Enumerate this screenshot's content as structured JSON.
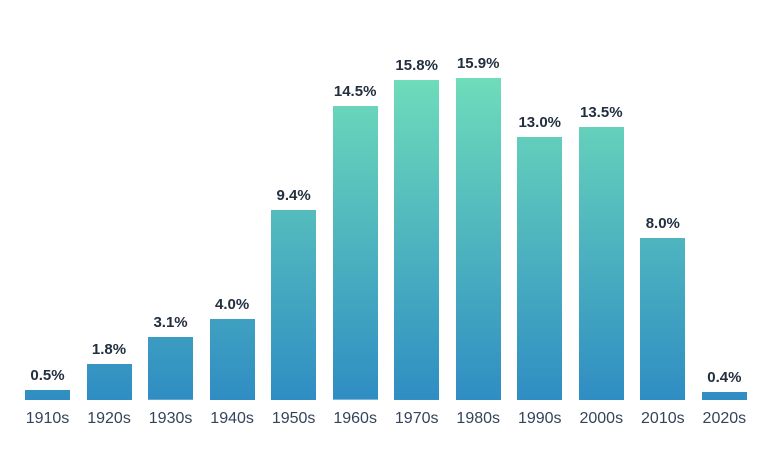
{
  "chart_data": {
    "type": "bar",
    "title": "",
    "xlabel": "",
    "ylabel": "",
    "categories": [
      "1910s",
      "1920s",
      "1930s",
      "1940s",
      "1950s",
      "1960s",
      "1970s",
      "1980s",
      "1990s",
      "2000s",
      "2010s",
      "2020s"
    ],
    "values": [
      0.5,
      1.8,
      3.1,
      4.0,
      9.4,
      14.5,
      15.8,
      15.9,
      13.0,
      13.5,
      8.0,
      0.4
    ],
    "labels": [
      "0.5%",
      "1.8%",
      "3.1%",
      "4.0%",
      "9.4%",
      "14.5%",
      "15.8%",
      "15.9%",
      "13.0%",
      "13.5%",
      "8.0%",
      "0.4%"
    ],
    "ylim": [
      0,
      15.9
    ],
    "grid": false,
    "legend": null,
    "value_labels_shown": true,
    "colors": {
      "bar_gradient_top": "#6fdcba",
      "bar_gradient_bottom": "#2f8dc3",
      "value_label": "#222f3f",
      "category_label": "#344459",
      "background": "#ffffff"
    }
  }
}
